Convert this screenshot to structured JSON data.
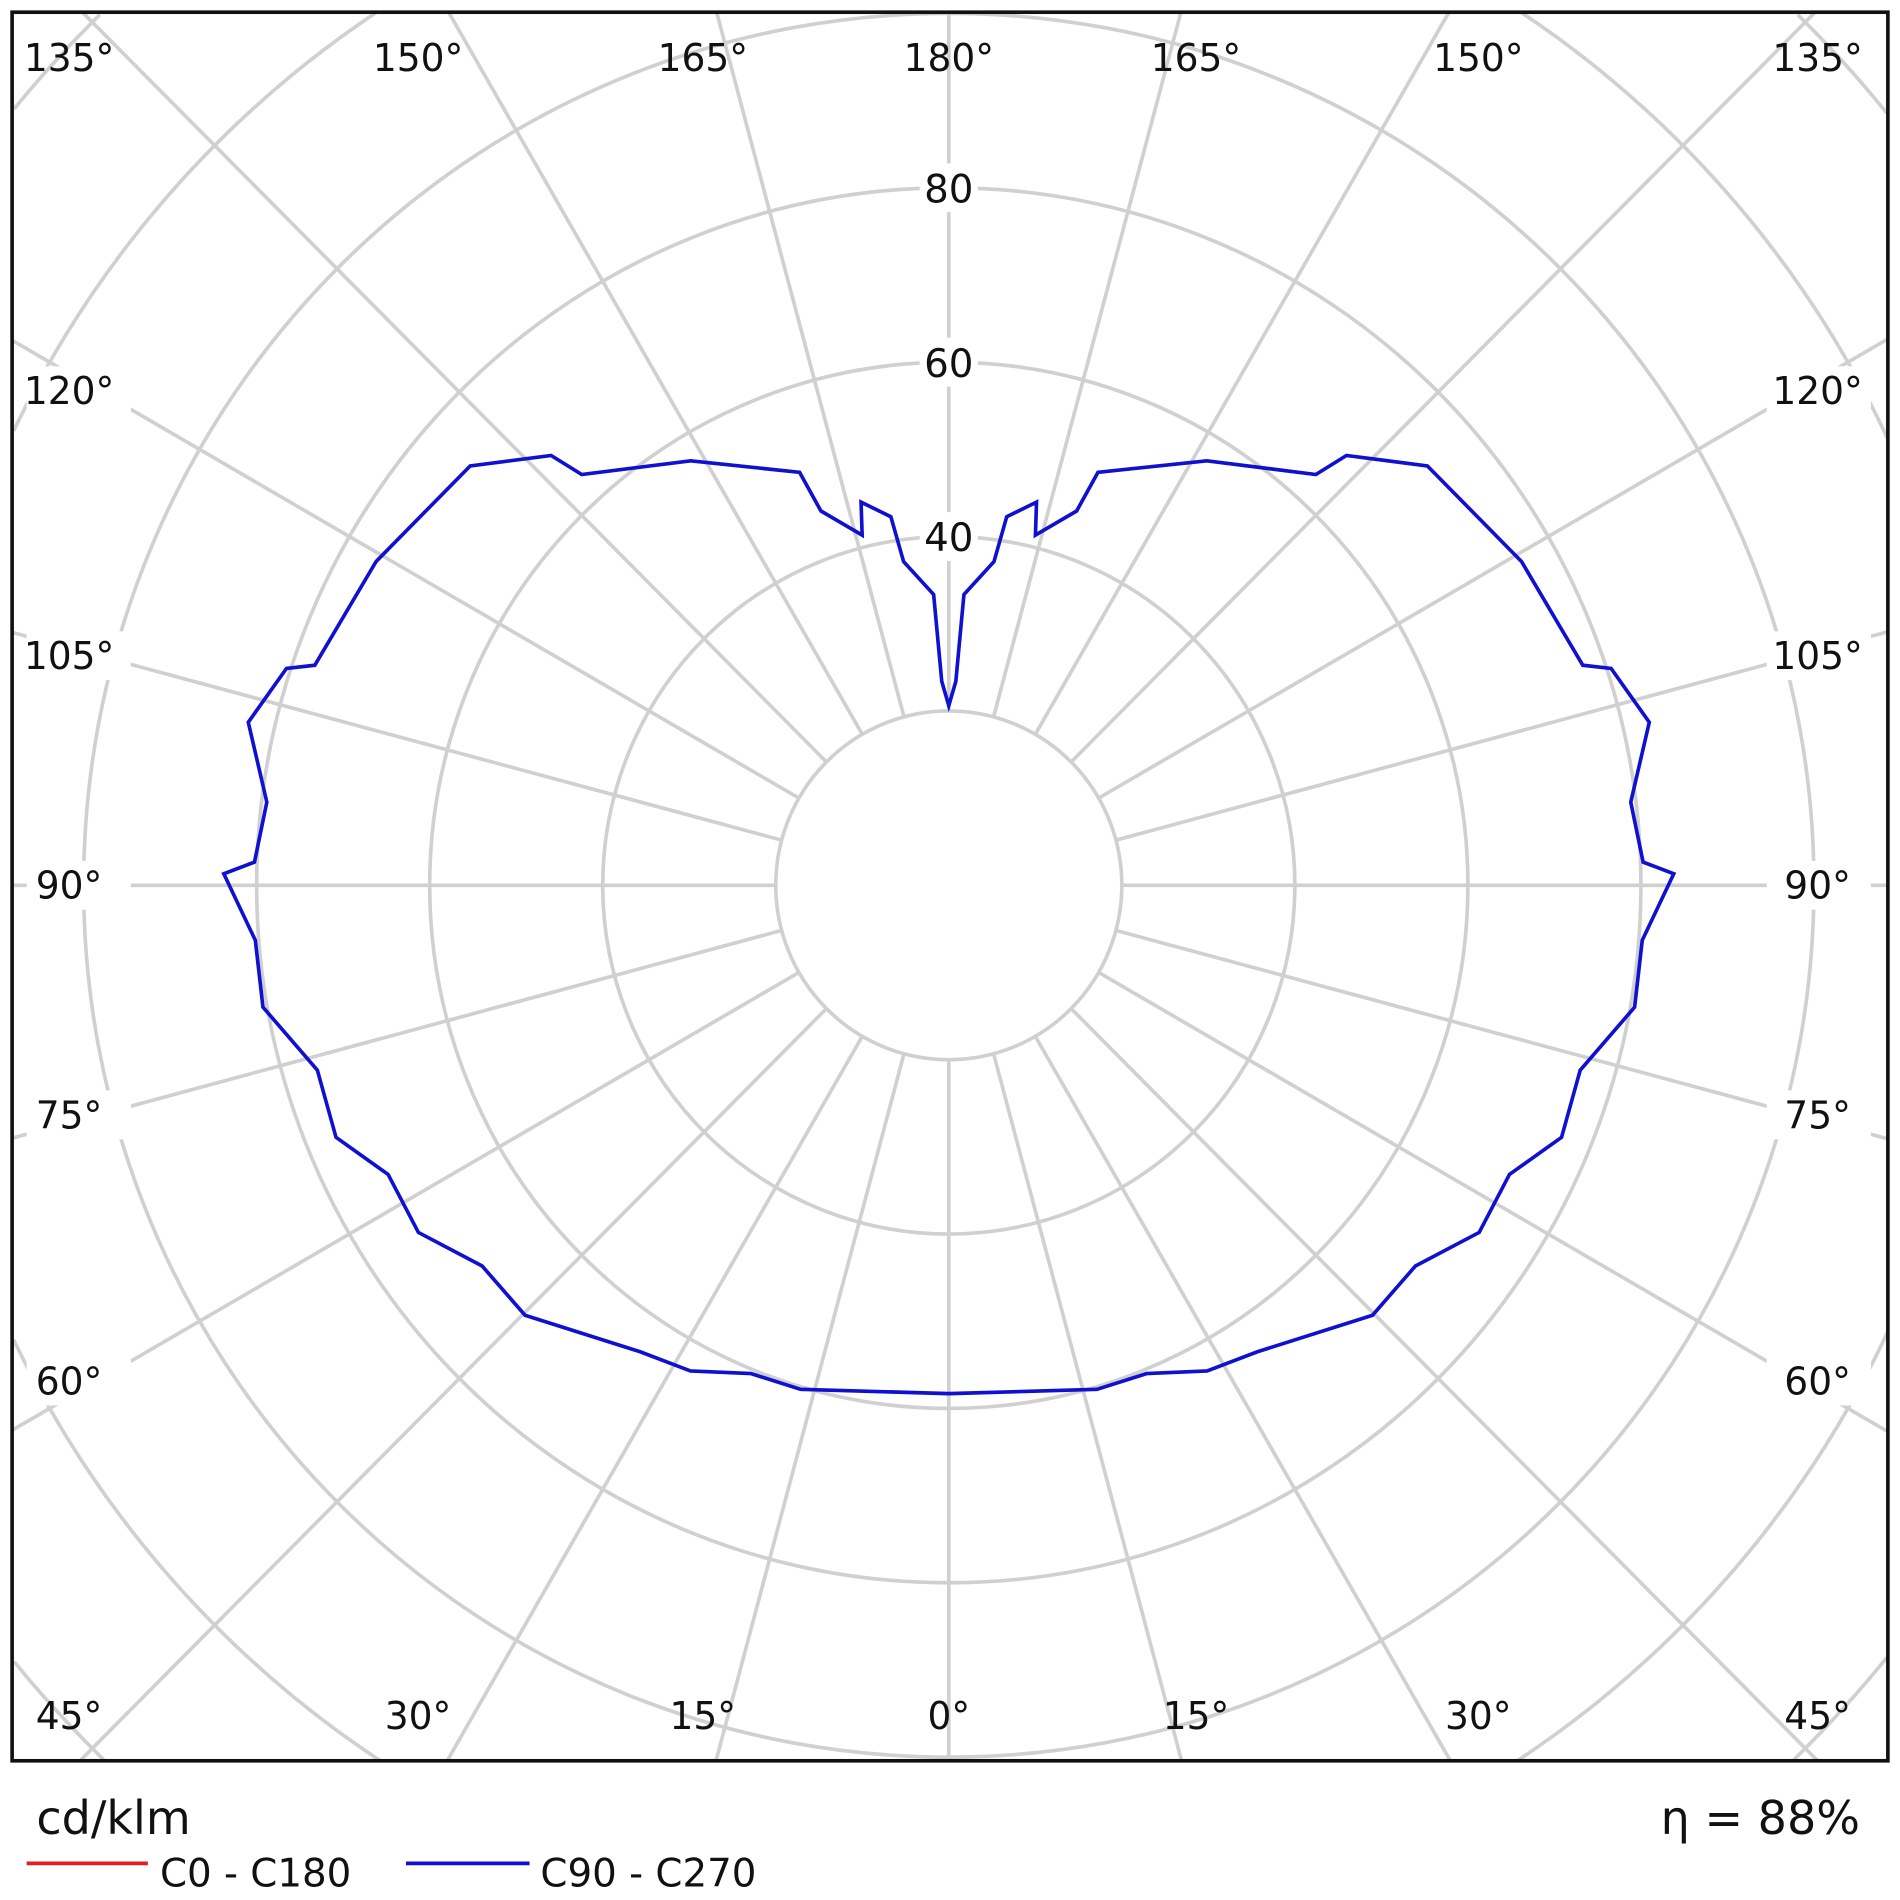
{
  "chart_data": {
    "type": "polar-line",
    "unit_label": "cd/klm",
    "efficiency_label": "η = 88%",
    "radial_ticks": [
      20,
      40,
      60,
      80,
      100,
      120,
      140
    ],
    "radial_tick_labels": [
      "40",
      "60",
      "80"
    ],
    "angle_labels_top": [
      "135°",
      "150°",
      "165°",
      "180°",
      "165°",
      "150°",
      "135°"
    ],
    "angle_labels_side": [
      "120°",
      "105°",
      "90°",
      "75°",
      "60°"
    ],
    "angle_labels_bottom": [
      "45°",
      "30°",
      "15°",
      "0°",
      "15°",
      "30°",
      "45°"
    ],
    "grid": true,
    "legend_position": "bottom-left",
    "legend": [
      {
        "name": "C0 - C180",
        "color": "#e02020"
      },
      {
        "name": "C90 - C270",
        "color": "#1010d0"
      }
    ],
    "series": [
      {
        "name": "C90 - C270",
        "color": "#1010d0",
        "symmetric": true,
        "gamma_deg": [
          0,
          16.5,
          22.2,
          28.2,
          33.7,
          44.8,
          51,
          57,
          62.9,
          67.8,
          73.8,
          80,
          85.5,
          90.9,
          91.9,
          96.9,
          103,
          108,
          109,
          119.3,
          131,
          137,
          138,
          148.5,
          160,
          161,
          166,
          167,
          171,
          172,
          177,
          178,
          180
        ],
        "values": [
          58.3,
          60.3,
          60.5,
          63.2,
          64.3,
          69.5,
          69.4,
          73.1,
          72.8,
          76.5,
          76,
          80.5,
          80.4,
          83.8,
          80.3,
          79.4,
          83.1,
          80.5,
          77.5,
          75.9,
          73.3,
          67.4,
          63.4,
          57.1,
          50.4,
          45.4,
          41.4,
          45.1,
          42.8,
          37.5,
          33.4,
          23.4,
          20.6
        ]
      }
    ]
  }
}
